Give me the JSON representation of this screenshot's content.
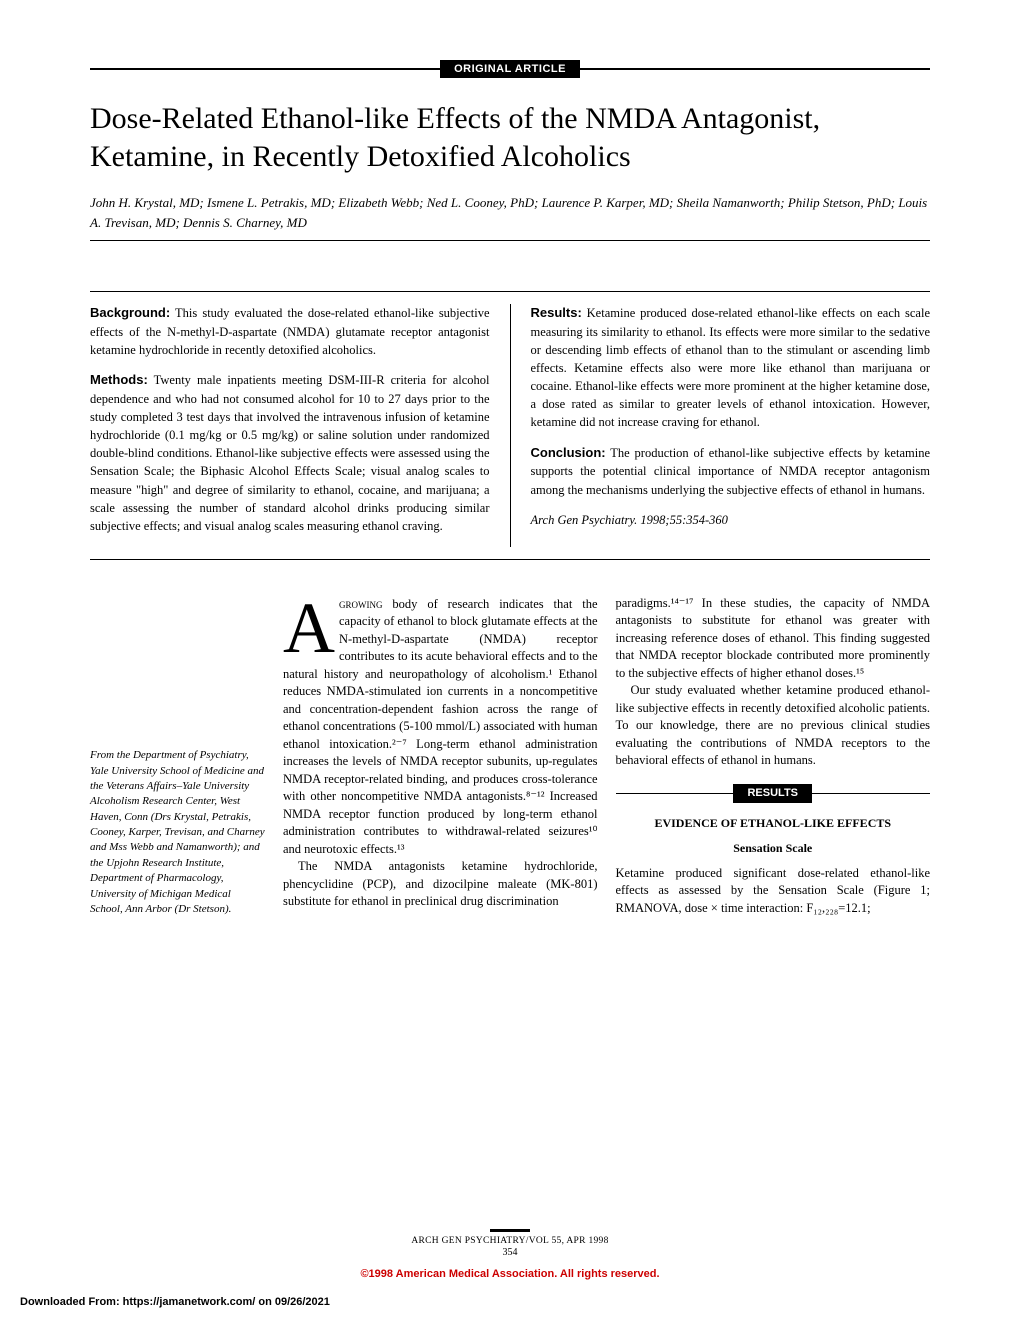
{
  "article_type": "ORIGINAL ARTICLE",
  "title": "Dose-Related Ethanol-like Effects of the NMDA Antagonist, Ketamine, in Recently Detoxified Alcoholics",
  "authors": "John H. Krystal, MD; Ismene L. Petrakis, MD; Elizabeth Webb; Ned L. Cooney, PhD; Laurence P. Karper, MD; Sheila Namanworth; Philip Stetson, PhD; Louis A. Trevisan, MD; Dennis S. Charney, MD",
  "abstract": {
    "background_label": "Background:",
    "background_text": " This study evaluated the dose-related ethanol-like subjective effects of the N-methyl-D-aspartate (NMDA) glutamate receptor antagonist ketamine hydrochloride in recently detoxified alcoholics.",
    "methods_label": "Methods:",
    "methods_text": " Twenty male inpatients meeting DSM-III-R criteria for alcohol dependence and who had not consumed alcohol for 10 to 27 days prior to the study completed 3 test days that involved the intravenous infusion of ketamine hydrochloride (0.1 mg/kg or 0.5 mg/kg) or saline solution under randomized double-blind conditions. Ethanol-like subjective effects were assessed using the Sensation Scale; the Biphasic Alcohol Effects Scale; visual analog scales to measure \"high\" and degree of similarity to ethanol, cocaine, and marijuana; a scale assessing the number of standard alcohol drinks producing similar subjective effects; and visual analog scales measuring ethanol craving.",
    "results_label": "Results:",
    "results_text": " Ketamine produced dose-related ethanol-like effects on each scale measuring its similarity to ethanol. Its effects were more similar to the sedative or descending limb effects of ethanol than to the stimulant or ascending limb effects. Ketamine effects also were more like ethanol than marijuana or cocaine. Ethanol-like effects were more prominent at the higher ketamine dose, a dose rated as similar to greater levels of ethanol intoxication. However, ketamine did not increase craving for ethanol.",
    "conclusion_label": "Conclusion:",
    "conclusion_text": " The production of ethanol-like subjective effects by ketamine supports the potential clinical importance of NMDA receptor antagonism among the mechanisms underlying the subjective effects of ethanol in humans.",
    "citation": "Arch Gen Psychiatry. 1998;55:354-360"
  },
  "affiliation": "From the Department of Psychiatry, Yale University School of Medicine and the Veterans Affairs–Yale University Alcoholism Research Center, West Haven, Conn (Drs Krystal, Petrakis, Cooney, Karper, Trevisan, and Charney and Mss Webb and Namanworth); and the Upjohn Research Institute, Department of Pharmacology, University of Michigan Medical School, Ann Arbor (Dr Stetson).",
  "body": {
    "dropcap": "A",
    "col1_p1": " body of research indicates that the capacity of ethanol to block glutamate effects at the N-methyl-D-aspartate (NMDA) receptor contributes to its acute behavioral effects and to the natural history and neuropathology of alcoholism.¹ Ethanol reduces NMDA-stimulated ion currents in a noncompetitive and concentration-dependent fashion across the range of ethanol concentrations (5-100 mmol/L) associated with human ethanol intoxication.²⁻⁷ Long-term ethanol administration increases the levels of NMDA receptor subunits, up-regulates NMDA receptor-related binding, and produces cross-tolerance with other noncompetitive NMDA antagonists.⁸⁻¹² Increased NMDA receptor function produced by long-term ethanol administration contributes to withdrawal-related seizures¹⁰ and neurotoxic effects.¹³",
    "smallcaps_word": "growing",
    "col1_p2": "The NMDA antagonists ketamine hydrochloride, phencyclidine (PCP), and dizocilpine maleate (MK-801) substitute for ethanol in preclinical drug discrimination",
    "col2_p1": "paradigms.¹⁴⁻¹⁷ In these studies, the capacity of NMDA antagonists to substitute for ethanol was greater with increasing reference doses of ethanol. This finding suggested that NMDA receptor blockade contributed more prominently to the subjective effects of higher ethanol doses.¹⁵",
    "col2_p2": "Our study evaluated whether ketamine produced ethanol-like subjective effects in recently detoxified alcoholic patients. To our knowledge, there are no previous clinical studies evaluating the contributions of NMDA receptors to the behavioral effects of ethanol in humans.",
    "results_header": "RESULTS",
    "subsection1": "EVIDENCE OF ETHANOL-LIKE EFFECTS",
    "subsection2": "Sensation Scale",
    "col2_p3": "Ketamine produced significant dose-related ethanol-like effects as assessed by the Sensation Scale (Figure 1; RMANOVA, dose × time interaction: F₁₂,₂₂₈=12.1;"
  },
  "footer": {
    "journal": "ARCH GEN PSYCHIATRY/VOL 55, APR 1998",
    "page": "354",
    "copyright": "©1998 American Medical Association. All rights reserved.",
    "download": "Downloaded From: https://jamanetwork.com/ on 09/26/2021"
  }
}
